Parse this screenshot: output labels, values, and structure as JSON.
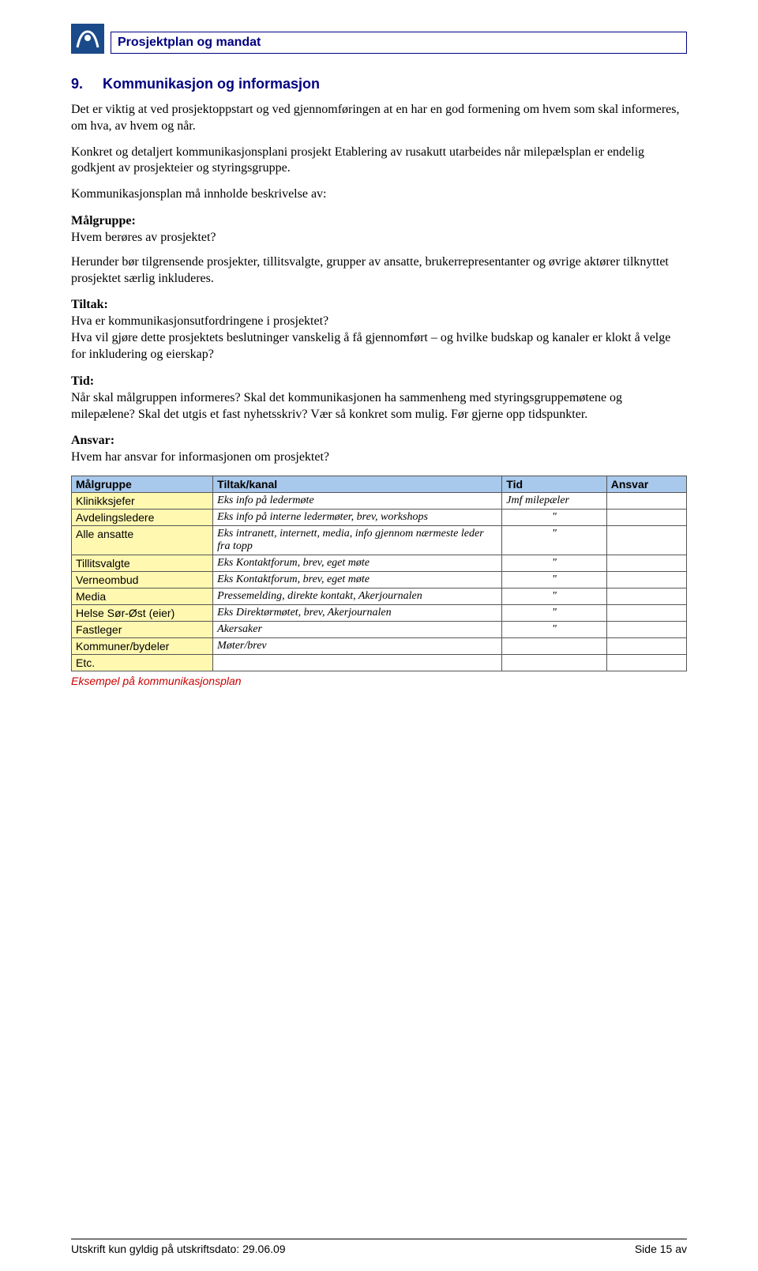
{
  "header": {
    "title": "Prosjektplan og mandat"
  },
  "section": {
    "number": "9.",
    "title": "Kommunikasjon og informasjon"
  },
  "paragraphs": {
    "intro1": "Det er viktig at ved prosjektoppstart og ved gjennomføringen at en har en god formening om hvem som skal informeres, om hva, av hvem og når.",
    "intro2": "Konkret og detaljert kommunikasjonsplani prosjekt Etablering av rusakutt  utarbeides når milepælsplan er endelig godkjent av prosjekteier og styringsgruppe.",
    "intro3": "Kommunikasjonsplan må innholde beskrivelse av:"
  },
  "maalgruppe": {
    "heading": "Målgruppe:",
    "line1": "Hvem berøres av prosjektet?",
    "line2": "Herunder bør tilgrensende prosjekter, tillitsvalgte, grupper av ansatte, brukerrepresentanter og øvrige aktører tilknyttet prosjektet særlig inkluderes."
  },
  "tiltak": {
    "heading": "Tiltak:",
    "line1": "Hva er kommunikasjonsutfordringene i prosjektet?",
    "line2": "Hva vil gjøre dette prosjektets beslutninger vanskelig å få gjennomført – og hvilke budskap og kanaler er klokt å velge for inkludering og eierskap?"
  },
  "tid": {
    "heading": "Tid:",
    "line1": "Når skal målgruppen informeres? Skal det kommunikasjonen ha sammenheng med styringsgruppemøtene og milepælene? Skal det utgis et fast nyhetsskriv? Vær så konkret som mulig. Før gjerne opp tidspunkter."
  },
  "ansvar": {
    "heading": "Ansvar:",
    "line1": "Hvem har ansvar for informasjonen om prosjektet?"
  },
  "table": {
    "header_bg": "#a8c8ec",
    "col1_bg": "#fff8b0",
    "columns": [
      "Målgruppe",
      "Tiltak/kanal",
      "Tid",
      "Ansvar"
    ],
    "col_widths": [
      "23%",
      "47%",
      "17%",
      "13%"
    ],
    "rows": [
      {
        "c0": "Klinikksjefer",
        "c1": "Eks info på ledermøte",
        "c2": "Jmf milepæler",
        "c3": ""
      },
      {
        "c0": "Avdelingsledere",
        "c1": "Eks info på interne ledermøter, brev, workshops",
        "c2": "\"",
        "c3": ""
      },
      {
        "c0": "Alle ansatte",
        "c1": "Eks intranett, internett, media, info gjennom nærmeste leder fra topp",
        "c2": "\"",
        "c3": ""
      },
      {
        "c0": "Tillitsvalgte",
        "c1": "Eks Kontaktforum, brev, eget møte",
        "c2": "\"",
        "c3": ""
      },
      {
        "c0": "Verneombud",
        "c1": "Eks Kontaktforum, brev, eget møte",
        "c2": "\"",
        "c3": ""
      },
      {
        "c0": "Media",
        "c1": "Pressemelding, direkte kontakt, Akerjournalen",
        "c2": "\"",
        "c3": ""
      },
      {
        "c0": "Helse Sør-Øst (eier)",
        "c1": "Eks Direktørmøtet, brev, Akerjournalen",
        "c2": "\"",
        "c3": ""
      },
      {
        "c0": "Fastleger",
        "c1": "Akersaker",
        "c2": "\"",
        "c3": ""
      },
      {
        "c0": "Kommuner/bydeler",
        "c1": "Møter/brev",
        "c2": "",
        "c3": ""
      },
      {
        "c0": "Etc.",
        "c1": "",
        "c2": "",
        "c3": ""
      }
    ],
    "caption": "Eksempel på kommunikasjonsplan"
  },
  "footer": {
    "left": "Utskrift kun gyldig på utskriftsdato:  29.06.09",
    "right": "Side 15 av"
  }
}
